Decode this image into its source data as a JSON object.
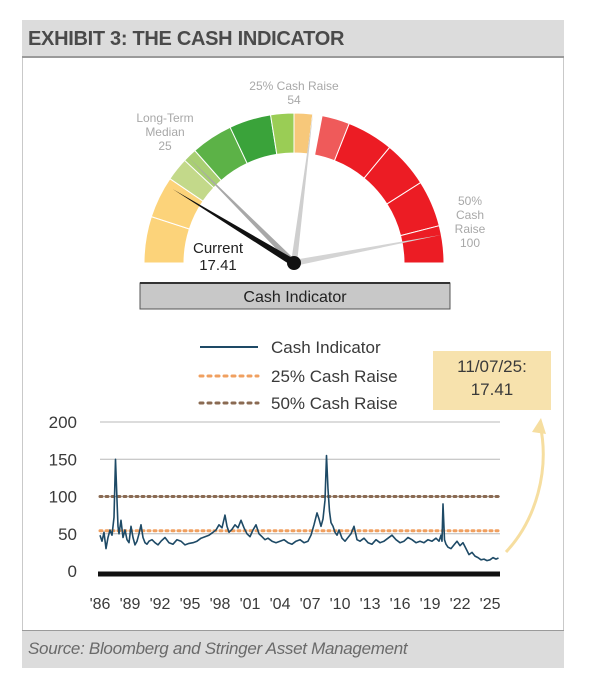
{
  "title": "EXHIBIT 3: THE CASH INDICATOR",
  "footer": "Source: Bloomberg and Stringer Asset Management",
  "gauge": {
    "label": "Cash Indicator",
    "min": 0,
    "max": 100,
    "current_label": "Current",
    "current_value": "17.41",
    "current": 17.41,
    "median_label_1": "Long-Term",
    "median_label_2": "Median",
    "median_value": "25",
    "median": 25,
    "raise25_label": "25% Cash Raise",
    "raise25_value": "54",
    "raise25": 54,
    "raise50_label_1": "50%",
    "raise50_label_2": "Cash",
    "raise50_label_3": "Raise",
    "raise50_value": "100",
    "raise50": 100
  },
  "callout": {
    "date": "11/07/25:",
    "value": "17.41"
  },
  "colors": {
    "series_line": "#1e4a66",
    "raise25_line": "#f0a060",
    "raise50_line": "#8a6a52",
    "gauge_yellow": "#fcd37a",
    "gauge_green": "#3aa33a",
    "gauge_red": "#ec1c24",
    "callout_bg": "#f7e2ad"
  },
  "chart_data": {
    "type": "line",
    "title": "",
    "xlabel": "",
    "ylabel": "",
    "ylim": [
      0,
      200
    ],
    "yticks": [
      "0",
      "50",
      "100",
      "150",
      "200"
    ],
    "xticks": [
      "'86",
      "'89",
      "'92",
      "'95",
      "'98",
      "'01",
      "'04",
      "'07",
      "'10",
      "'13",
      "'16",
      "'19",
      "'22",
      "'25"
    ],
    "xrange": [
      1986.0,
      2026.0
    ],
    "grid": true,
    "legend_position": "top",
    "legend": [
      "Cash Indicator",
      "25% Cash Raise",
      "50% Cash Raise"
    ],
    "series": [
      {
        "name": "Cash Indicator",
        "x": [
          1986.0,
          1986.2,
          1986.4,
          1986.6,
          1986.8,
          1987.0,
          1987.2,
          1987.4,
          1987.55,
          1987.7,
          1987.8,
          1987.9,
          1988.1,
          1988.3,
          1988.5,
          1988.7,
          1988.9,
          1989.1,
          1989.3,
          1989.5,
          1989.7,
          1989.9,
          1990.1,
          1990.3,
          1990.5,
          1990.7,
          1990.9,
          1991.2,
          1991.5,
          1991.8,
          1992.1,
          1992.5,
          1992.9,
          1993.3,
          1993.7,
          1994.1,
          1994.5,
          1994.9,
          1995.3,
          1995.7,
          1996.1,
          1996.5,
          1996.9,
          1997.3,
          1997.6,
          1997.9,
          1998.2,
          1998.5,
          1998.7,
          1998.9,
          1999.2,
          1999.5,
          1999.8,
          2000.1,
          2000.4,
          2000.7,
          2001.0,
          2001.3,
          2001.6,
          2001.9,
          2002.2,
          2002.5,
          2002.8,
          2003.2,
          2003.6,
          2004.0,
          2004.4,
          2004.8,
          2005.2,
          2005.6,
          2006.0,
          2006.4,
          2006.8,
          2007.1,
          2007.4,
          2007.7,
          2007.9,
          2008.1,
          2008.3,
          2008.5,
          2008.65,
          2008.8,
          2008.95,
          2009.1,
          2009.3,
          2009.5,
          2009.7,
          2009.9,
          2010.2,
          2010.5,
          2010.8,
          2011.1,
          2011.4,
          2011.7,
          2012.0,
          2012.4,
          2012.8,
          2013.2,
          2013.6,
          2014.0,
          2014.4,
          2014.8,
          2015.2,
          2015.6,
          2016.0,
          2016.4,
          2016.8,
          2017.2,
          2017.6,
          2018.0,
          2018.4,
          2018.8,
          2019.2,
          2019.6,
          2019.9,
          2020.1,
          2020.2,
          2020.3,
          2020.45,
          2020.6,
          2020.8,
          2021.1,
          2021.4,
          2021.7,
          2022.0,
          2022.3,
          2022.6,
          2022.9,
          2023.2,
          2023.5,
          2023.8,
          2024.1,
          2024.4,
          2024.7,
          2025.0,
          2025.3,
          2025.6,
          2025.85
        ],
        "y": [
          48,
          40,
          52,
          30,
          45,
          55,
          48,
          72,
          150,
          95,
          60,
          50,
          68,
          45,
          55,
          42,
          38,
          60,
          45,
          35,
          40,
          50,
          62,
          45,
          38,
          36,
          40,
          42,
          38,
          35,
          40,
          45,
          38,
          36,
          42,
          40,
          35,
          37,
          38,
          40,
          44,
          46,
          48,
          52,
          55,
          62,
          58,
          75,
          60,
          52,
          56,
          62,
          58,
          68,
          58,
          50,
          46,
          55,
          62,
          50,
          46,
          42,
          44,
          40,
          38,
          40,
          42,
          38,
          36,
          40,
          42,
          38,
          40,
          48,
          62,
          78,
          70,
          60,
          70,
          95,
          155,
          110,
          80,
          65,
          60,
          52,
          48,
          55,
          44,
          40,
          45,
          50,
          60,
          42,
          40,
          44,
          38,
          36,
          42,
          38,
          40,
          44,
          48,
          42,
          38,
          40,
          45,
          42,
          38,
          40,
          38,
          42,
          40,
          44,
          40,
          48,
          40,
          90,
          42,
          36,
          32,
          30,
          35,
          40,
          34,
          38,
          30,
          22,
          25,
          20,
          18,
          15,
          16,
          14,
          15,
          18,
          16,
          17.41
        ]
      },
      {
        "name": "25% Cash Raise",
        "y": 54
      },
      {
        "name": "50% Cash Raise",
        "y": 100
      }
    ]
  }
}
